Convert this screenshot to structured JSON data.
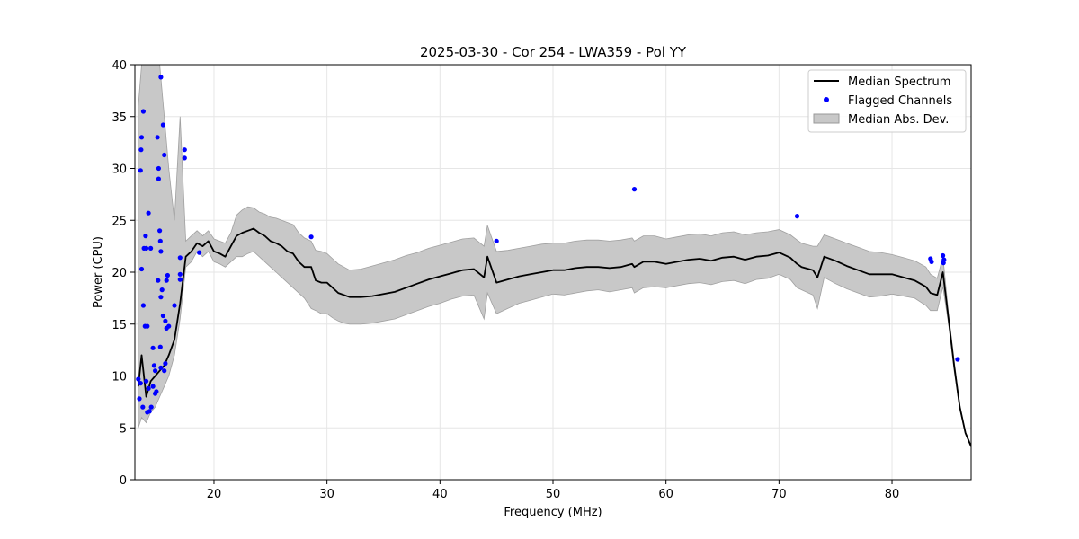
{
  "chart_data": {
    "type": "line",
    "title": "2025-03-30 - Cor 254 - LWA359 - Pol YY",
    "xlabel": "Frequency (MHz)",
    "ylabel": "Power (CPU)",
    "xlim": [
      13.0,
      87.0
    ],
    "ylim": [
      0,
      40
    ],
    "xticks": [
      20,
      30,
      40,
      50,
      60,
      70,
      80
    ],
    "yticks": [
      0,
      5,
      10,
      15,
      20,
      25,
      30,
      35,
      40
    ],
    "grid": true,
    "legend_position": "top-right",
    "legend": [
      {
        "label": "Median Spectrum",
        "kind": "line",
        "color": "#000000"
      },
      {
        "label": "Flagged Channels",
        "kind": "marker",
        "color": "#0000ff"
      },
      {
        "label": "Median Abs. Dev.",
        "kind": "fill",
        "color": "#c8c8c8"
      }
    ],
    "series": [
      {
        "name": "Median Spectrum",
        "x": [
          13.3,
          13.6,
          14.0,
          14.4,
          14.8,
          15.2,
          15.6,
          16.0,
          16.5,
          17.0,
          17.5,
          18.0,
          18.5,
          19.0,
          19.5,
          20.0,
          20.5,
          21.0,
          21.5,
          22.0,
          22.5,
          23.0,
          23.5,
          24.0,
          24.5,
          25.0,
          25.5,
          26.0,
          26.5,
          27.0,
          27.5,
          28.0,
          28.6,
          29.0,
          29.5,
          30.0,
          30.5,
          31.0,
          31.5,
          32.0,
          33.0,
          34.0,
          35.0,
          36.0,
          37.0,
          38.0,
          39.0,
          40.0,
          41.0,
          42.0,
          43.0,
          43.9,
          44.2,
          45.0,
          46.0,
          47.0,
          48.0,
          49.0,
          50.0,
          51.0,
          52.0,
          53.0,
          54.0,
          55.0,
          56.0,
          57.0,
          57.2,
          58.0,
          59.0,
          60.0,
          61.0,
          62.0,
          63.0,
          64.0,
          65.0,
          66.0,
          67.0,
          68.0,
          69.0,
          70.0,
          71.0,
          71.6,
          72.0,
          73.0,
          73.4,
          74.0,
          75.0,
          76.0,
          77.0,
          78.0,
          79.0,
          80.0,
          81.0,
          82.0,
          83.0,
          83.4,
          84.0,
          84.5,
          85.0,
          85.5,
          86.0,
          86.5,
          87.0
        ],
        "y": [
          9.0,
          12.0,
          8.0,
          9.5,
          10.0,
          10.5,
          11.0,
          12.0,
          13.5,
          17.0,
          21.5,
          22.0,
          22.8,
          22.5,
          23.0,
          22.0,
          21.8,
          21.5,
          22.5,
          23.5,
          23.8,
          24.0,
          24.2,
          23.8,
          23.5,
          23.0,
          22.8,
          22.5,
          22.0,
          21.8,
          21.0,
          20.5,
          20.5,
          19.2,
          19.0,
          19.0,
          18.5,
          18.0,
          17.8,
          17.6,
          17.6,
          17.7,
          17.9,
          18.1,
          18.5,
          18.9,
          19.3,
          19.6,
          19.9,
          20.2,
          20.3,
          19.5,
          21.5,
          19.0,
          19.3,
          19.6,
          19.8,
          20.0,
          20.2,
          20.2,
          20.4,
          20.5,
          20.5,
          20.4,
          20.5,
          20.8,
          20.5,
          21.0,
          21.0,
          20.8,
          21.0,
          21.2,
          21.3,
          21.1,
          21.4,
          21.5,
          21.2,
          21.5,
          21.6,
          21.9,
          21.4,
          20.8,
          20.5,
          20.2,
          19.5,
          21.5,
          21.1,
          20.6,
          20.2,
          19.8,
          19.8,
          19.8,
          19.5,
          19.2,
          18.6,
          18.0,
          17.8,
          20.0,
          15.5,
          11.0,
          7.0,
          4.5,
          3.2
        ]
      },
      {
        "name": "Median Abs. Dev.",
        "x": [
          13.3,
          13.6,
          14.0,
          14.4,
          14.8,
          15.2,
          15.6,
          16.0,
          16.5,
          17.0,
          17.5,
          18.0,
          18.5,
          19.0,
          19.5,
          20.0,
          20.5,
          21.0,
          21.5,
          22.0,
          22.5,
          23.0,
          23.5,
          24.0,
          24.5,
          25.0,
          25.5,
          26.0,
          26.5,
          27.0,
          27.5,
          28.0,
          28.6,
          29.0,
          29.5,
          30.0,
          30.5,
          31.0,
          31.5,
          32.0,
          33.0,
          34.0,
          35.0,
          36.0,
          37.0,
          38.0,
          39.0,
          40.0,
          41.0,
          42.0,
          43.0,
          43.9,
          44.2,
          45.0,
          46.0,
          47.0,
          48.0,
          49.0,
          50.0,
          51.0,
          52.0,
          53.0,
          54.0,
          55.0,
          56.0,
          57.0,
          57.2,
          58.0,
          59.0,
          60.0,
          61.0,
          62.0,
          63.0,
          64.0,
          65.0,
          66.0,
          67.0,
          68.0,
          69.0,
          70.0,
          71.0,
          71.6,
          72.0,
          73.0,
          73.4,
          74.0,
          75.0,
          76.0,
          77.0,
          78.0,
          79.0,
          80.0,
          81.0,
          82.0,
          83.0,
          83.4,
          84.0,
          84.5,
          85.0,
          85.5,
          86.0,
          86.5,
          87.0
        ],
        "lower": [
          5.0,
          6.0,
          5.5,
          6.5,
          7.0,
          8.0,
          9.0,
          10.0,
          12.0,
          15.5,
          20.5,
          21.0,
          22.0,
          21.5,
          22.0,
          21.0,
          20.8,
          20.5,
          21.0,
          21.5,
          21.5,
          21.8,
          22.0,
          21.5,
          21.0,
          20.5,
          20.0,
          19.5,
          19.0,
          18.5,
          18.0,
          17.5,
          16.5,
          16.3,
          16.0,
          16.0,
          15.6,
          15.3,
          15.1,
          15.0,
          15.0,
          15.1,
          15.3,
          15.5,
          15.9,
          16.3,
          16.7,
          17.0,
          17.4,
          17.7,
          17.8,
          15.5,
          18.0,
          16.0,
          16.5,
          17.0,
          17.3,
          17.6,
          17.9,
          17.8,
          18.0,
          18.2,
          18.3,
          18.1,
          18.3,
          18.5,
          18.0,
          18.5,
          18.6,
          18.5,
          18.7,
          18.9,
          19.0,
          18.8,
          19.1,
          19.2,
          18.9,
          19.3,
          19.4,
          19.8,
          19.3,
          18.5,
          18.3,
          17.8,
          16.5,
          19.5,
          18.9,
          18.4,
          18.0,
          17.6,
          17.7,
          17.9,
          17.7,
          17.5,
          16.8,
          16.3,
          16.3,
          18.6,
          15.0,
          10.5,
          6.8,
          4.4,
          3.1
        ],
        "upper": [
          36.0,
          40.0,
          40.0,
          40.0,
          40.0,
          40.0,
          35.0,
          30.0,
          25.0,
          35.0,
          23.0,
          23.5,
          24.0,
          23.5,
          24.0,
          23.2,
          23.0,
          22.8,
          23.8,
          25.5,
          26.0,
          26.3,
          26.2,
          25.8,
          25.6,
          25.3,
          25.2,
          25.0,
          24.8,
          24.6,
          23.8,
          23.3,
          23.0,
          22.1,
          22.0,
          21.8,
          21.3,
          20.8,
          20.5,
          20.2,
          20.3,
          20.6,
          20.9,
          21.2,
          21.6,
          21.9,
          22.3,
          22.6,
          22.9,
          23.2,
          23.3,
          22.5,
          24.5,
          22.0,
          22.1,
          22.3,
          22.5,
          22.7,
          22.8,
          22.8,
          23.0,
          23.1,
          23.1,
          23.0,
          23.1,
          23.3,
          23.0,
          23.5,
          23.5,
          23.2,
          23.4,
          23.6,
          23.7,
          23.5,
          23.8,
          23.9,
          23.6,
          23.8,
          23.9,
          24.1,
          23.6,
          23.1,
          22.8,
          22.5,
          22.5,
          23.6,
          23.2,
          22.8,
          22.4,
          22.0,
          21.9,
          21.7,
          21.4,
          21.1,
          20.5,
          19.8,
          19.4,
          21.5,
          16.0,
          11.5,
          7.2,
          4.6,
          3.3
        ]
      },
      {
        "name": "Flagged Channels",
        "points": [
          [
            13.3,
            9.7
          ],
          [
            13.4,
            7.8
          ],
          [
            13.5,
            9.3
          ],
          [
            13.5,
            29.8
          ],
          [
            13.55,
            31.8
          ],
          [
            13.6,
            33.0
          ],
          [
            13.6,
            20.3
          ],
          [
            13.7,
            7.0
          ],
          [
            13.75,
            35.5
          ],
          [
            13.75,
            16.8
          ],
          [
            13.8,
            22.3
          ],
          [
            13.9,
            14.8
          ],
          [
            13.95,
            23.5
          ],
          [
            14.0,
            22.3
          ],
          [
            14.0,
            9.5
          ],
          [
            14.1,
            6.5
          ],
          [
            14.1,
            14.8
          ],
          [
            14.2,
            25.7
          ],
          [
            14.2,
            8.8
          ],
          [
            14.3,
            6.6
          ],
          [
            14.4,
            22.3
          ],
          [
            14.45,
            7.0
          ],
          [
            14.6,
            12.7
          ],
          [
            14.6,
            9.0
          ],
          [
            14.7,
            11.0
          ],
          [
            14.8,
            8.3
          ],
          [
            14.8,
            10.5
          ],
          [
            14.9,
            8.5
          ],
          [
            15.0,
            33.0
          ],
          [
            15.05,
            19.2
          ],
          [
            15.1,
            29.0
          ],
          [
            15.1,
            30.0
          ],
          [
            15.2,
            24.0
          ],
          [
            15.25,
            23.0
          ],
          [
            15.25,
            12.8
          ],
          [
            15.3,
            17.6
          ],
          [
            15.3,
            10.8
          ],
          [
            15.3,
            22.0
          ],
          [
            15.3,
            38.8
          ],
          [
            15.4,
            18.3
          ],
          [
            15.5,
            34.2
          ],
          [
            15.5,
            15.8
          ],
          [
            15.6,
            31.3
          ],
          [
            15.6,
            10.5
          ],
          [
            15.7,
            11.2
          ],
          [
            15.7,
            15.3
          ],
          [
            15.8,
            19.2
          ],
          [
            15.8,
            14.6
          ],
          [
            15.9,
            19.7
          ],
          [
            16.0,
            14.8
          ],
          [
            16.5,
            16.8
          ],
          [
            17.0,
            19.8
          ],
          [
            17.0,
            21.4
          ],
          [
            17.0,
            19.3
          ],
          [
            17.4,
            31.8
          ],
          [
            17.4,
            31.0
          ],
          [
            18.7,
            21.9
          ],
          [
            28.6,
            23.4
          ],
          [
            45.0,
            23.0
          ],
          [
            57.2,
            28.0
          ],
          [
            71.6,
            25.4
          ],
          [
            83.4,
            21.3
          ],
          [
            83.5,
            21.0
          ],
          [
            84.5,
            21.6
          ],
          [
            84.55,
            20.9
          ],
          [
            84.6,
            21.2
          ],
          [
            85.8,
            11.6
          ]
        ]
      }
    ]
  }
}
